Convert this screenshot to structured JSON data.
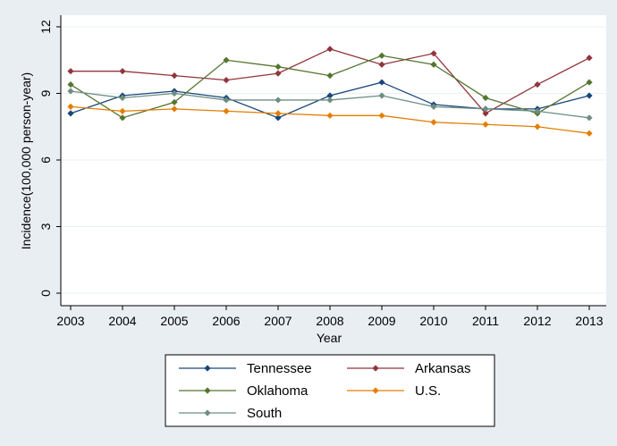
{
  "chart_data": {
    "type": "line",
    "title": "",
    "xlabel": "Year",
    "ylabel": "Incidence(100,000 person-year)",
    "x": [
      2003,
      2004,
      2005,
      2006,
      2007,
      2008,
      2009,
      2010,
      2011,
      2012,
      2013
    ],
    "x_ticks": [
      "2003",
      "2004",
      "2005",
      "2006",
      "2007",
      "2008",
      "2009",
      "2010",
      "2011",
      "2012",
      "2013"
    ],
    "y_ticks": [
      "0",
      "3",
      "6",
      "9",
      "12"
    ],
    "ylim": [
      0,
      12
    ],
    "grid": "horizontal",
    "legend_position": "bottom",
    "series": [
      {
        "name": "Tennessee",
        "color": "#1a477a",
        "values": [
          8.1,
          8.9,
          9.1,
          8.8,
          7.9,
          8.9,
          9.5,
          8.5,
          8.3,
          8.3,
          8.9
        ]
      },
      {
        "name": "Arkansas",
        "color": "#90353b",
        "values": [
          10.0,
          10.0,
          9.8,
          9.6,
          9.9,
          11.0,
          10.3,
          10.8,
          8.1,
          9.4,
          10.6
        ]
      },
      {
        "name": "Oklahoma",
        "color": "#55752f",
        "values": [
          9.4,
          7.9,
          8.6,
          10.5,
          10.2,
          9.8,
          10.7,
          10.3,
          8.8,
          8.1,
          9.5
        ]
      },
      {
        "name": "U.S.",
        "color": "#e37e00",
        "values": [
          8.4,
          8.2,
          8.3,
          8.2,
          8.1,
          8.0,
          8.0,
          7.7,
          7.6,
          7.5,
          7.2
        ]
      },
      {
        "name": "South",
        "color": "#6e8e84",
        "values": [
          9.1,
          8.8,
          9.0,
          8.7,
          8.7,
          8.7,
          8.9,
          8.4,
          8.3,
          8.2,
          7.9
        ]
      }
    ]
  }
}
